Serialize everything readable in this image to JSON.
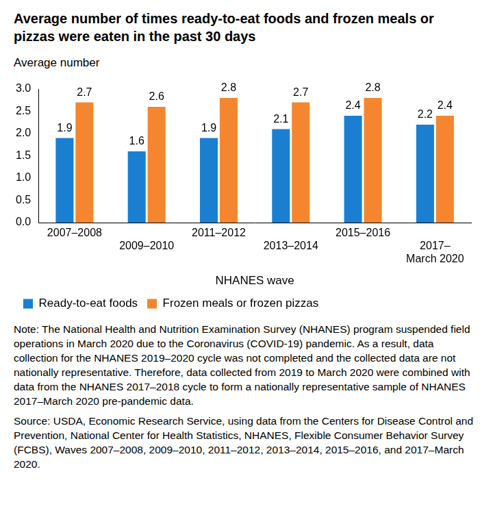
{
  "chart_data": {
    "type": "bar",
    "title": "Average number of times ready-to-eat foods and frozen meals or pizzas were eaten in the past 30 days",
    "y_label": "Average number",
    "x_label": "NHANES wave",
    "categories": [
      "2007–2008",
      "2009–2010",
      "2011–2012",
      "2013–2014",
      "2015–2016",
      "2017–March 2020"
    ],
    "series": [
      {
        "name": "Ready-to-eat foods",
        "color": "#1b7fd1",
        "values": [
          1.9,
          1.6,
          1.9,
          2.1,
          2.4,
          2.2
        ]
      },
      {
        "name": "Frozen meals or frozen pizzas",
        "color": "#f5862f",
        "values": [
          2.7,
          2.6,
          2.8,
          2.7,
          2.8,
          2.4
        ]
      }
    ],
    "ylim": [
      0,
      3
    ],
    "yticks": [
      {
        "value": 0,
        "label": "0.0"
      },
      {
        "value": 0.5,
        "label": "0.5"
      },
      {
        "value": 1,
        "label": "1.0"
      },
      {
        "value": 1.5,
        "label": "1.5"
      },
      {
        "value": 2,
        "label": "2.0"
      },
      {
        "value": 2.5,
        "label": "2.5"
      },
      {
        "value": 3,
        "label": "3.0"
      }
    ],
    "grid": false,
    "legend": "bottom",
    "data_labels": true,
    "note": "Note: The National Health and Nutrition Examination Survey (NHANES) program suspended field operations in March 2020 due to the Coronavirus (COVID-19) pandemic. As a result, data collection for the NHANES 2019–2020 cycle was not completed and the collected data are not nationally representative. Therefore, data collected from 2019 to March 2020 were combined with data from the NHANES 2017–2018 cycle to form a nationally representative sample of NHANES 2017–March 2020 pre-pandemic data.",
    "source": "Source: USDA, Economic Research Service, using data from the Centers for Disease Control and Prevention, National Center for Health Statistics, NHANES, Flexible Consumer Behavior Survey (FCBS), Waves 2007–2008, 2009–2010, 2011–2012, 2013–2014, 2015–2016, and 2017–March 2020."
  }
}
